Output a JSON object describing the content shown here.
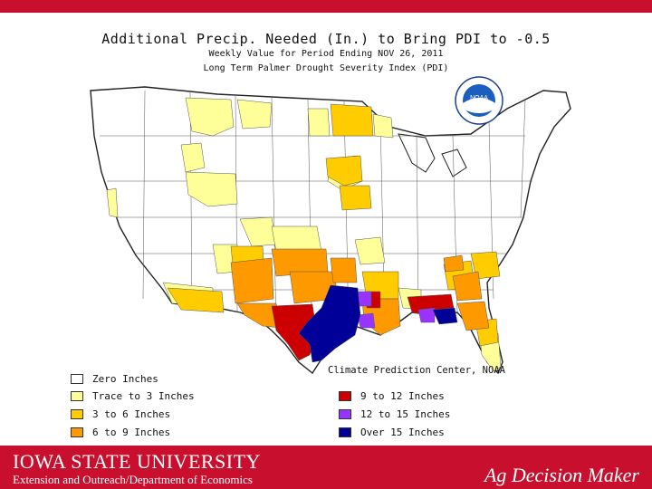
{
  "map": {
    "title": "Additional Precip. Needed (In.) to Bring PDI to -0.5",
    "subtitle": "Weekly Value for Period Ending NOV 26, 2011",
    "index_name": "Long Term Palmer Drought Severity Index (PDI)",
    "credit": "Climate Prediction Center, NOAA",
    "logo_text": "NOAA"
  },
  "legend": {
    "items": [
      {
        "label": "Zero Inches",
        "color": "#ffffff"
      },
      {
        "label": "Trace to 3 Inches",
        "color": "#ffff99"
      },
      {
        "label": "3 to 6 Inches",
        "color": "#ffcc00"
      },
      {
        "label": "6 to 9 Inches",
        "color": "#ff9900"
      },
      {
        "label": "9 to 12 Inches",
        "color": "#cc0000"
      },
      {
        "label": "12 to 15 Inches",
        "color": "#9933ff"
      },
      {
        "label": "Over 15 Inches",
        "color": "#000099"
      }
    ]
  },
  "footer": {
    "university": "IOWA STATE UNIVERSITY",
    "department": "Extension and Outreach/Department of Economics",
    "brand": "Ag Decision Maker",
    "color": "#c8102e"
  }
}
